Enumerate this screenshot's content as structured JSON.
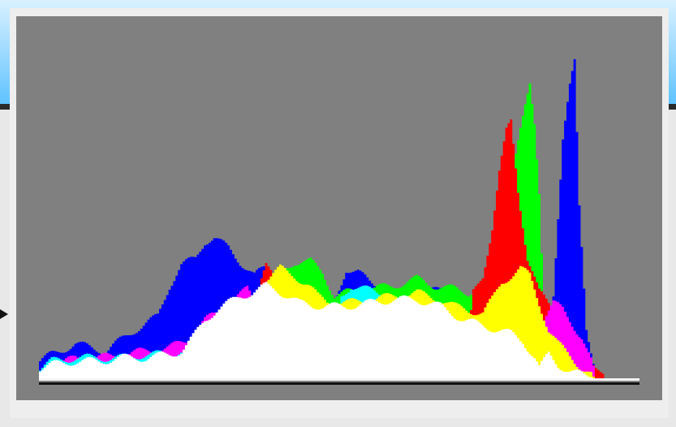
{
  "colors": {
    "title_bar_gradient": [
      "#d8f1ff",
      "#9edaff",
      "#5fc3ff"
    ],
    "title_bar_rule": "#2a2a2a",
    "window_background": "#e8e8e8",
    "panel_frame": "#eeeeee",
    "plot_background": "#808080",
    "baseline": "#111111",
    "pointer": "#111111"
  },
  "icons": {
    "pointer": "triangle-right-pointer-icon"
  },
  "chart_data": {
    "type": "area",
    "style": "overlapping RGB histogram, levels 0-255, grey background, no visible axis labels or ticks",
    "x_range": [
      0,
      255
    ],
    "y_range": [
      0,
      1
    ],
    "grid": false,
    "legend": "none",
    "layers": [
      {
        "name": "",
        "color": "#0000ff",
        "points": [
          [
            0,
            0.05
          ],
          [
            5,
            0.07
          ],
          [
            15,
            0.1
          ],
          [
            28,
            0.08
          ],
          [
            40,
            0.14
          ],
          [
            50,
            0.18
          ],
          [
            55,
            0.27
          ],
          [
            60,
            0.33
          ],
          [
            66,
            0.35
          ],
          [
            70,
            0.4
          ],
          [
            74,
            0.41
          ],
          [
            80,
            0.38
          ],
          [
            85,
            0.34
          ],
          [
            91,
            0.3
          ],
          [
            95,
            0.32
          ],
          [
            100,
            0.3
          ],
          [
            106,
            0.28
          ],
          [
            110,
            0.25
          ],
          [
            125,
            0.22
          ],
          [
            130,
            0.32
          ],
          [
            135,
            0.31
          ],
          [
            140,
            0.28
          ],
          [
            150,
            0.25
          ],
          [
            160,
            0.24
          ],
          [
            170,
            0.26
          ],
          [
            180,
            0.23
          ],
          [
            190,
            0.19
          ],
          [
            200,
            0.17
          ],
          [
            208,
            0.12
          ],
          [
            214,
            0.09
          ],
          [
            218,
            0.25
          ],
          [
            222,
            0.7
          ],
          [
            225,
            0.85
          ],
          [
            227,
            0.92
          ],
          [
            229,
            0.5
          ],
          [
            232,
            0.15
          ],
          [
            236,
            0.02
          ],
          [
            240,
            0.0
          ],
          [
            255,
            0.0
          ]
        ]
      },
      {
        "name": "",
        "color": "#00ff00",
        "points": [
          [
            0,
            0.0
          ],
          [
            90,
            0.0
          ],
          [
            92,
            0.15
          ],
          [
            100,
            0.3
          ],
          [
            108,
            0.34
          ],
          [
            115,
            0.34
          ],
          [
            120,
            0.31
          ],
          [
            125,
            0.24
          ],
          [
            130,
            0.25
          ],
          [
            140,
            0.26
          ],
          [
            150,
            0.27
          ],
          [
            160,
            0.29
          ],
          [
            168,
            0.27
          ],
          [
            176,
            0.26
          ],
          [
            182,
            0.25
          ],
          [
            188,
            0.28
          ],
          [
            192,
            0.35
          ],
          [
            196,
            0.42
          ],
          [
            200,
            0.58
          ],
          [
            204,
            0.72
          ],
          [
            208,
            0.86
          ],
          [
            210,
            0.75
          ],
          [
            212,
            0.55
          ],
          [
            214,
            0.2
          ],
          [
            216,
            0.0
          ],
          [
            255,
            0.0
          ]
        ]
      },
      {
        "name": "",
        "color": "#ff0000",
        "points": [
          [
            0,
            0.0
          ],
          [
            90,
            0.0
          ],
          [
            94,
            0.28
          ],
          [
            96,
            0.33
          ],
          [
            100,
            0.31
          ],
          [
            105,
            0.26
          ],
          [
            110,
            0.0
          ],
          [
            180,
            0.0
          ],
          [
            184,
            0.25
          ],
          [
            188,
            0.3
          ],
          [
            192,
            0.44
          ],
          [
            195,
            0.6
          ],
          [
            198,
            0.72
          ],
          [
            200,
            0.75
          ],
          [
            203,
            0.55
          ],
          [
            207,
            0.35
          ],
          [
            212,
            0.25
          ],
          [
            216,
            0.22
          ],
          [
            222,
            0.18
          ],
          [
            226,
            0.12
          ],
          [
            230,
            0.08
          ],
          [
            234,
            0.06
          ],
          [
            238,
            0.02
          ],
          [
            240,
            0.0
          ],
          [
            255,
            0.0
          ]
        ]
      },
      {
        "name": "",
        "color": "#ff00ff",
        "points": [
          [
            0,
            0.0
          ],
          [
            8,
            0.04
          ],
          [
            15,
            0.06
          ],
          [
            25,
            0.06
          ],
          [
            35,
            0.07
          ],
          [
            45,
            0.08
          ],
          [
            55,
            0.09
          ],
          [
            62,
            0.11
          ],
          [
            70,
            0.17
          ],
          [
            78,
            0.2
          ],
          [
            84,
            0.24
          ],
          [
            88,
            0.26
          ],
          [
            92,
            0.22
          ],
          [
            96,
            0.0
          ],
          [
            210,
            0.0
          ],
          [
            214,
            0.18
          ],
          [
            218,
            0.22
          ],
          [
            222,
            0.2
          ],
          [
            226,
            0.16
          ],
          [
            230,
            0.12
          ],
          [
            234,
            0.05
          ],
          [
            236,
            0.0
          ],
          [
            255,
            0.0
          ]
        ]
      },
      {
        "name": "",
        "color": "#00ffff",
        "points": [
          [
            0,
            0.03
          ],
          [
            5,
            0.05
          ],
          [
            15,
            0.06
          ],
          [
            25,
            0.06
          ],
          [
            35,
            0.06
          ],
          [
            45,
            0.07
          ],
          [
            55,
            0.07
          ],
          [
            60,
            0.08
          ],
          [
            64,
            0.0
          ],
          [
            125,
            0.0
          ],
          [
            128,
            0.24
          ],
          [
            132,
            0.27
          ],
          [
            138,
            0.26
          ],
          [
            144,
            0.25
          ],
          [
            150,
            0.0
          ],
          [
            255,
            0.0
          ]
        ]
      },
      {
        "name": "",
        "color": "#ffff00",
        "points": [
          [
            0,
            0.0
          ],
          [
            85,
            0.0
          ],
          [
            90,
            0.22
          ],
          [
            96,
            0.29
          ],
          [
            102,
            0.32
          ],
          [
            108,
            0.3
          ],
          [
            114,
            0.27
          ],
          [
            118,
            0.24
          ],
          [
            124,
            0.22
          ],
          [
            130,
            0.22
          ],
          [
            140,
            0.23
          ],
          [
            150,
            0.24
          ],
          [
            160,
            0.25
          ],
          [
            170,
            0.23
          ],
          [
            176,
            0.21
          ],
          [
            182,
            0.2
          ],
          [
            188,
            0.19
          ],
          [
            192,
            0.23
          ],
          [
            196,
            0.28
          ],
          [
            200,
            0.3
          ],
          [
            204,
            0.32
          ],
          [
            208,
            0.3
          ],
          [
            212,
            0.22
          ],
          [
            216,
            0.14
          ],
          [
            220,
            0.1
          ],
          [
            226,
            0.06
          ],
          [
            230,
            0.03
          ],
          [
            234,
            0.01
          ],
          [
            236,
            0.0
          ],
          [
            255,
            0.0
          ]
        ]
      },
      {
        "name": "",
        "color": "#ffffff",
        "points": [
          [
            0,
            0.03
          ],
          [
            5,
            0.04
          ],
          [
            15,
            0.05
          ],
          [
            25,
            0.05
          ],
          [
            35,
            0.06
          ],
          [
            45,
            0.06
          ],
          [
            55,
            0.07
          ],
          [
            60,
            0.08
          ],
          [
            65,
            0.12
          ],
          [
            70,
            0.17
          ],
          [
            75,
            0.2
          ],
          [
            80,
            0.22
          ],
          [
            85,
            0.24
          ],
          [
            90,
            0.25
          ],
          [
            96,
            0.27
          ],
          [
            100,
            0.26
          ],
          [
            105,
            0.24
          ],
          [
            110,
            0.22
          ],
          [
            120,
            0.21
          ],
          [
            130,
            0.21
          ],
          [
            140,
            0.22
          ],
          [
            150,
            0.23
          ],
          [
            160,
            0.23
          ],
          [
            170,
            0.21
          ],
          [
            175,
            0.19
          ],
          [
            180,
            0.17
          ],
          [
            190,
            0.15
          ],
          [
            200,
            0.13
          ],
          [
            205,
            0.11
          ],
          [
            210,
            0.06
          ],
          [
            212,
            0.03
          ],
          [
            214,
            0.05
          ],
          [
            216,
            0.07
          ],
          [
            220,
            0.04
          ],
          [
            225,
            0.02
          ],
          [
            230,
            0.01
          ],
          [
            235,
            0.0
          ],
          [
            255,
            0.0
          ]
        ]
      }
    ]
  }
}
